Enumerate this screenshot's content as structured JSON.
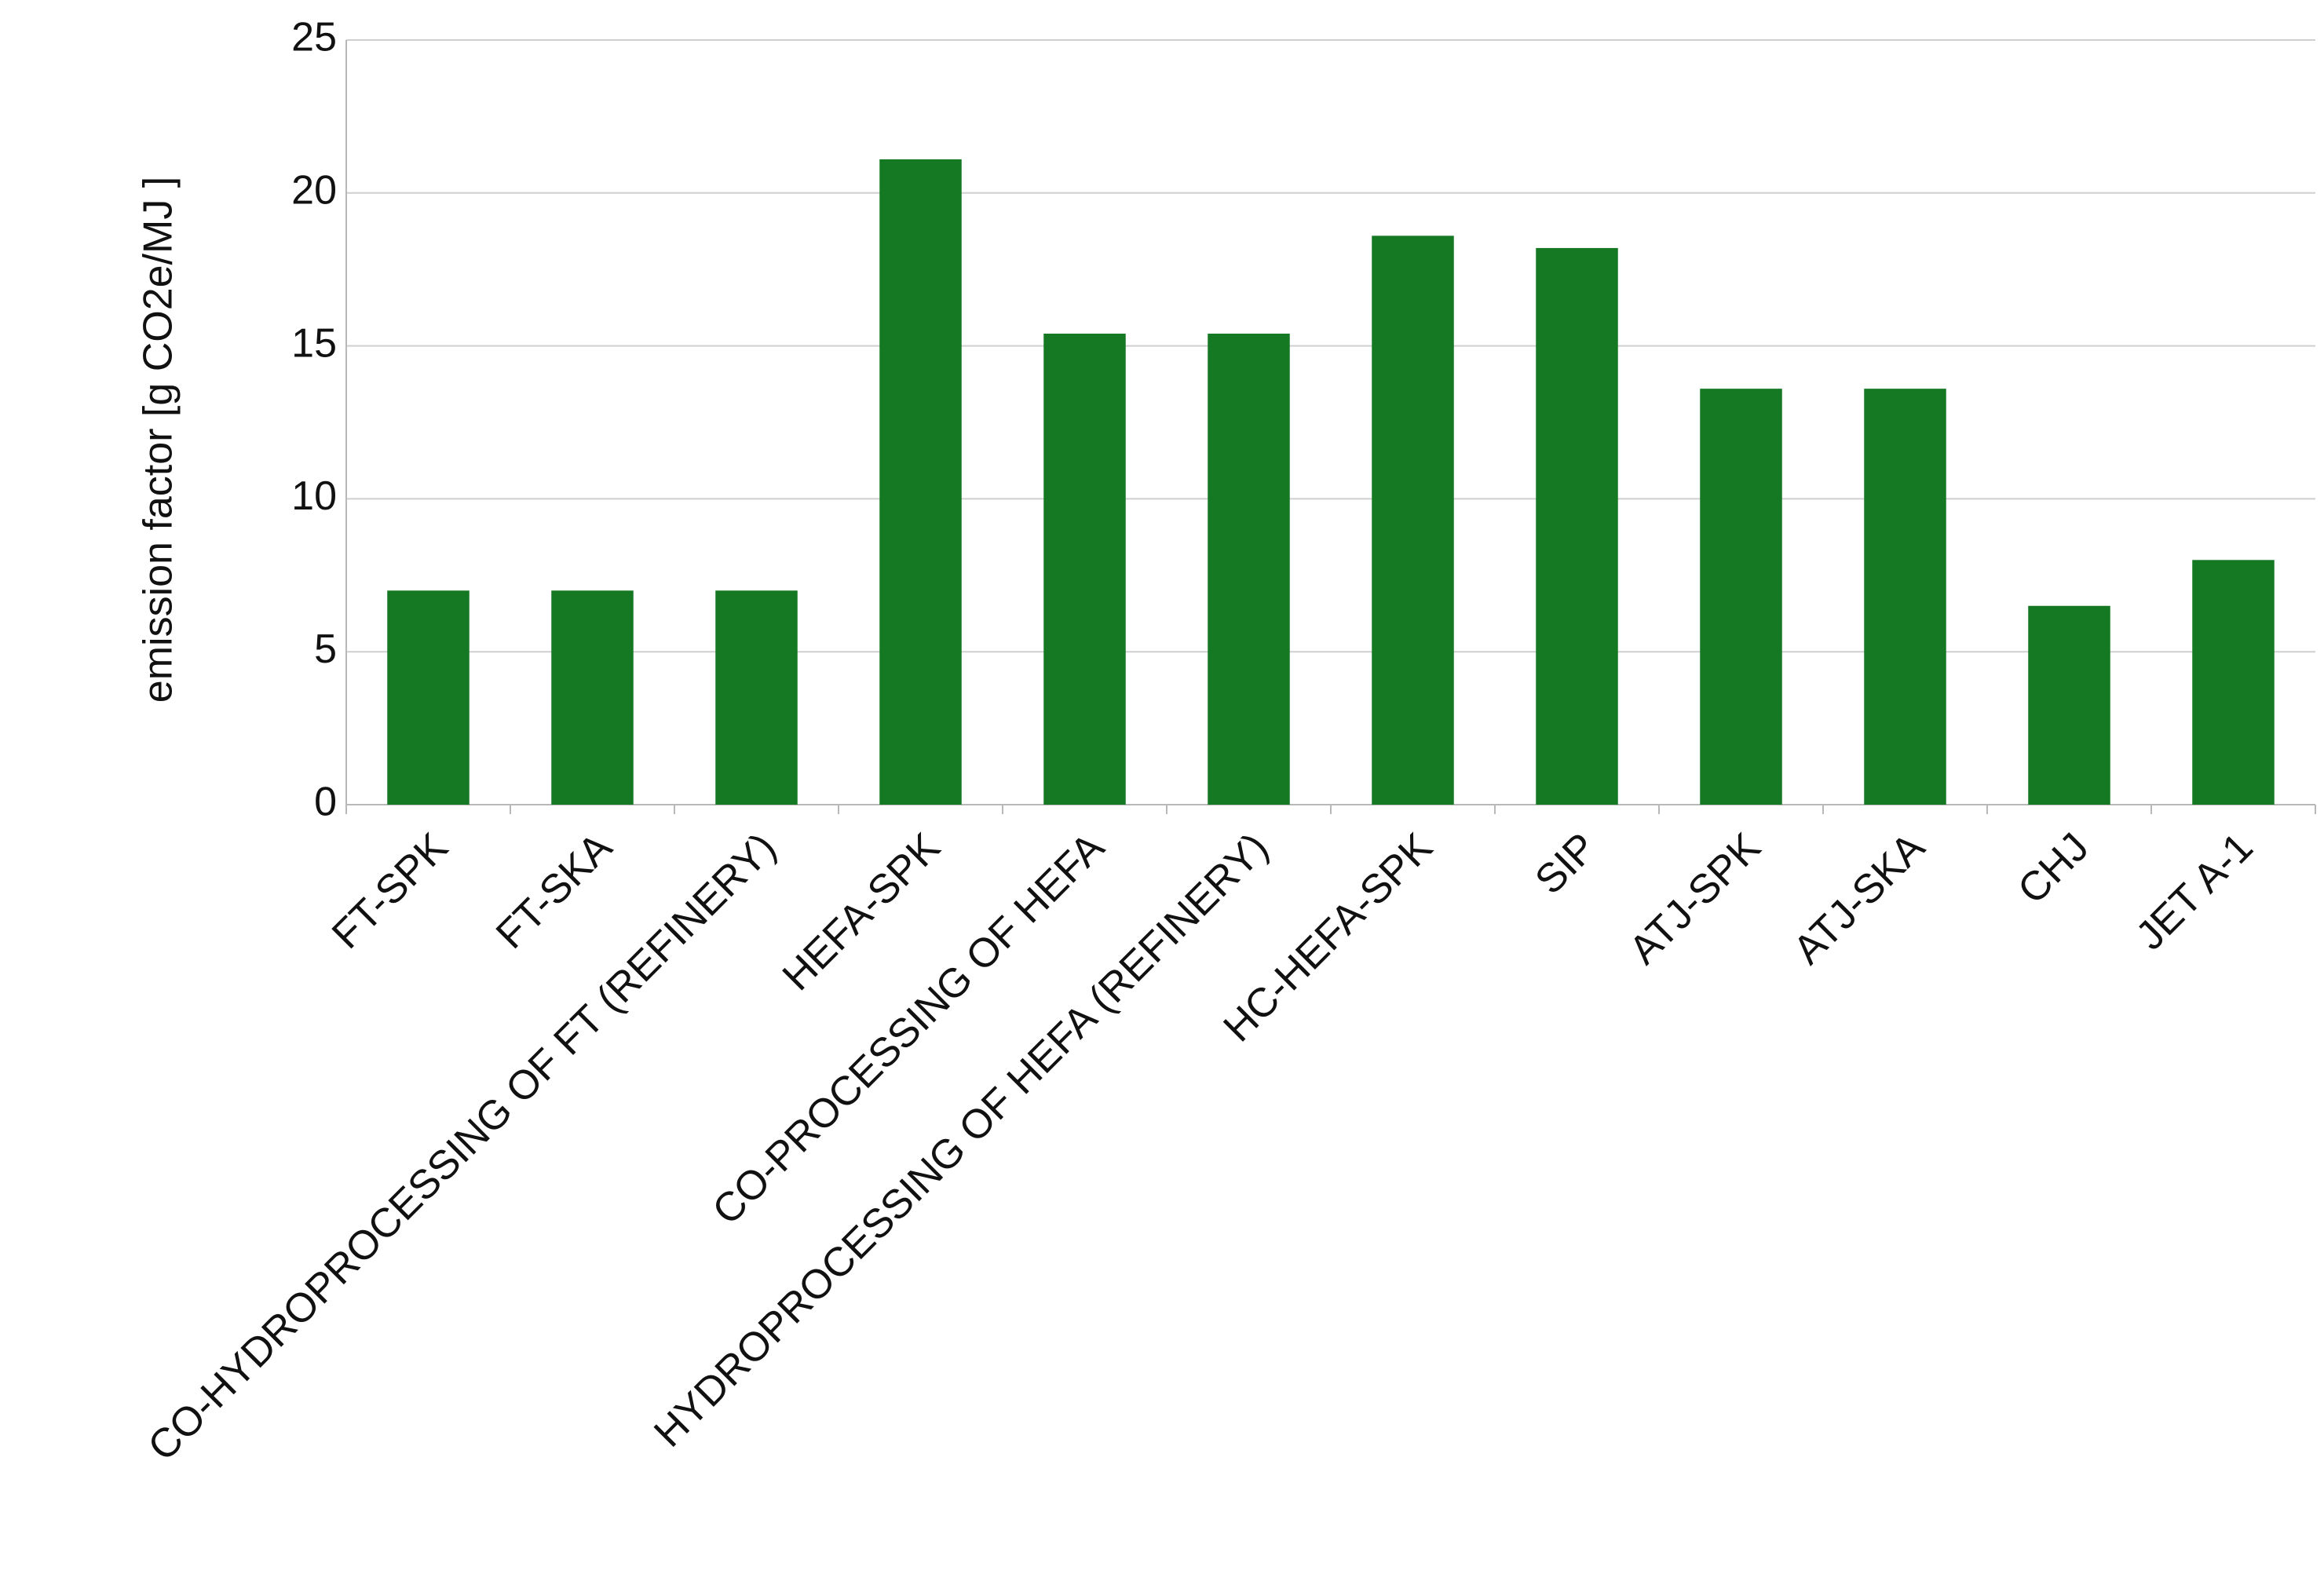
{
  "chart_data": {
    "type": "bar",
    "y_label": "emission factor [g CO2e/MJ ]",
    "categories": [
      "FT-SPK",
      "FT-SKA",
      "CO-HYDROPROCESSING OF FT (REFINERY)",
      "HEFA-SPK",
      "CO-PROCESSING OF HEFA",
      "HYDROPROCESSING OF HEFA (REFINERY)",
      "HC-HEFA-SPK",
      "SIP",
      "ATJ-SPK",
      "ATJ-SKA",
      "CHJ",
      "JET A-1"
    ],
    "values": [
      7.0,
      7.0,
      7.0,
      21.1,
      15.4,
      15.4,
      18.6,
      18.2,
      13.6,
      13.6,
      6.5,
      8.0
    ],
    "color": "#157823",
    "ylim": [
      0,
      25
    ],
    "yticks": [
      0,
      5,
      10,
      15,
      20,
      25
    ],
    "grid": true
  }
}
